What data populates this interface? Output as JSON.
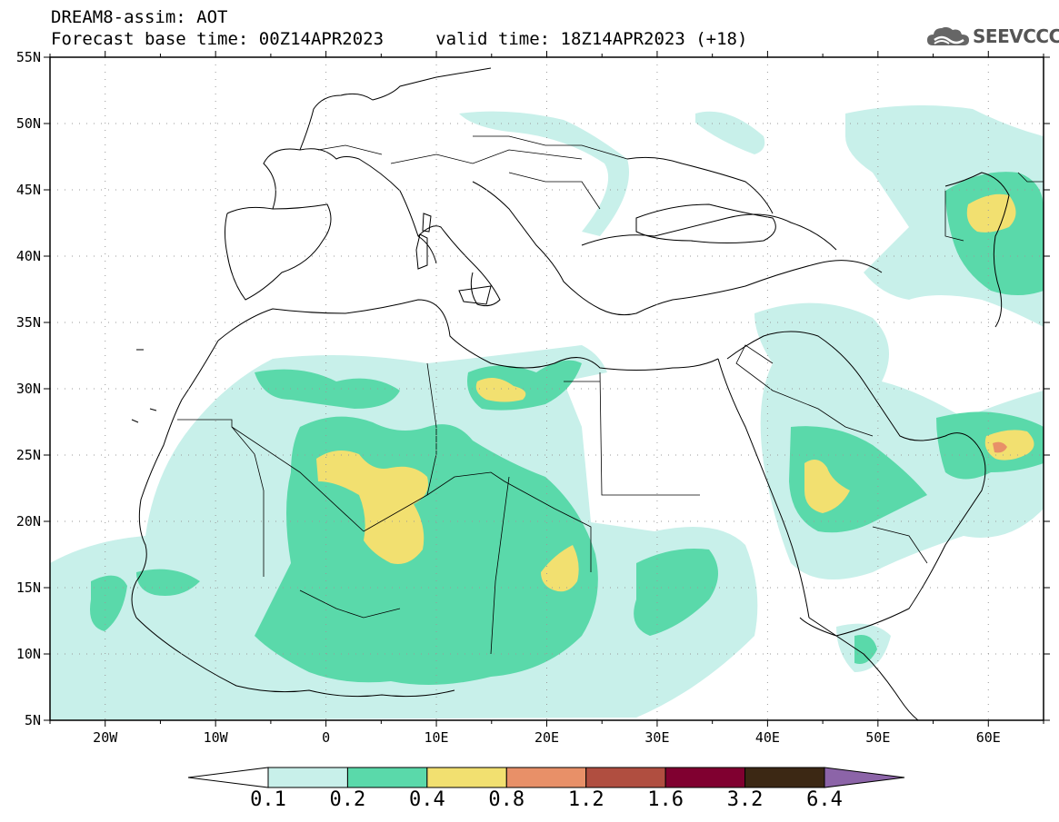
{
  "header": {
    "line1": "DREAM8-assim: AOT",
    "line2": "Forecast base time: 00Z14APR2023     valid time: 18Z14APR2023 (+18)"
  },
  "logo": {
    "text": "SEEVCCC",
    "icon": "cloud-logo-icon"
  },
  "map": {
    "lon_ticks": [
      "20W",
      "10W",
      "0",
      "10E",
      "20E",
      "30E",
      "40E",
      "50E",
      "60E"
    ],
    "lat_ticks": [
      "55N",
      "50N",
      "45N",
      "40N",
      "35N",
      "30N",
      "25N",
      "20N",
      "15N",
      "10N",
      "5N"
    ],
    "lon_range": [
      -25,
      65
    ],
    "lat_range": [
      5,
      55
    ],
    "grid": "dotted"
  },
  "colorbar": {
    "labels": [
      "0.1",
      "0.2",
      "0.4",
      "0.8",
      "1.2",
      "1.6",
      "3.2",
      "6.4"
    ],
    "colors": [
      "#ffffff",
      "#c8f0ea",
      "#5ad9aa",
      "#f2e070",
      "#e89068",
      "#b04e40",
      "#800030",
      "#3c2814",
      "#8c64a8"
    ]
  },
  "colors": {
    "aot_0_1": "#c8f0ea",
    "aot_0_2": "#5ad9aa",
    "aot_0_4": "#f2e070",
    "aot_0_8": "#e89068"
  }
}
